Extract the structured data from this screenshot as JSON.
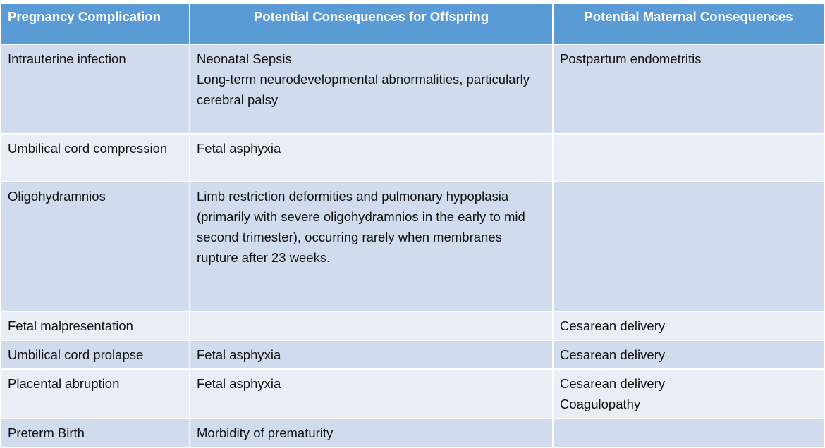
{
  "colors": {
    "header": "#5b9bd5",
    "row_odd": "#d0dbed",
    "row_even": "#e9eef6"
  },
  "headers": [
    "Pregnancy Complication",
    "Potential Consequences for Offspring",
    "Potential Maternal Consequences"
  ],
  "rows": [
    {
      "complication": "Intrauterine infection",
      "offspring": [
        "Neonatal Sepsis",
        "Long-term neurodevelopmental abnormalities, particularly cerebral palsy"
      ],
      "maternal": [
        "Postpartum endometritis"
      ]
    },
    {
      "complication": "Umbilical cord compression",
      "offspring": [
        "Fetal asphyxia"
      ],
      "maternal": []
    },
    {
      "complication": "Oligohydramnios",
      "offspring": [
        "Limb restriction deformities and pulmonary hypoplasia (primarily with severe oligohydramnios in the early to mid second trimester), occurring rarely when membranes rupture after 23 weeks."
      ],
      "maternal": []
    },
    {
      "complication": "Fetal malpresentation",
      "offspring": [],
      "maternal": [
        "Cesarean delivery"
      ]
    },
    {
      "complication": "Umbilical cord prolapse",
      "offspring": [
        "Fetal asphyxia"
      ],
      "maternal": [
        "Cesarean delivery"
      ]
    },
    {
      "complication": "Placental abruption",
      "offspring": [
        "Fetal asphyxia"
      ],
      "maternal": [
        "Cesarean delivery",
        "Coagulopathy"
      ]
    },
    {
      "complication": "Preterm Birth",
      "offspring": [
        "Morbidity of prematurity"
      ],
      "maternal": []
    }
  ]
}
